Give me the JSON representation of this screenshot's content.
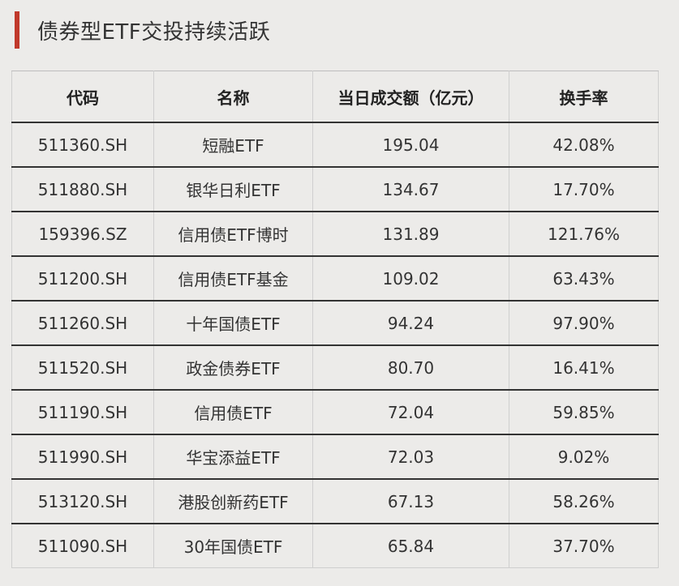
{
  "title": "债券型ETF交投持续活跃",
  "accent_color": "#c0392b",
  "table": {
    "headers": [
      "代码",
      "名称",
      "当日成交额（亿元）",
      "换手率"
    ],
    "rows": [
      [
        "511360.SH",
        "短融ETF",
        "195.04",
        "42.08%"
      ],
      [
        "511880.SH",
        "银华日利ETF",
        "134.67",
        "17.70%"
      ],
      [
        "159396.SZ",
        "信用债ETF博时",
        "131.89",
        "121.76%"
      ],
      [
        "511200.SH",
        "信用债ETF基金",
        "109.02",
        "63.43%"
      ],
      [
        "511260.SH",
        "十年国债ETF",
        "94.24",
        "97.90%"
      ],
      [
        "511520.SH",
        "政金债券ETF",
        "80.70",
        "16.41%"
      ],
      [
        "511190.SH",
        "信用债ETF",
        "72.04",
        "59.85%"
      ],
      [
        "511990.SH",
        "华宝添益ETF",
        "72.03",
        "9.02%"
      ],
      [
        "513120.SH",
        "港股创新药ETF",
        "67.13",
        "58.26%"
      ],
      [
        "511090.SH",
        "30年国债ETF",
        "65.84",
        "37.70%"
      ]
    ]
  }
}
